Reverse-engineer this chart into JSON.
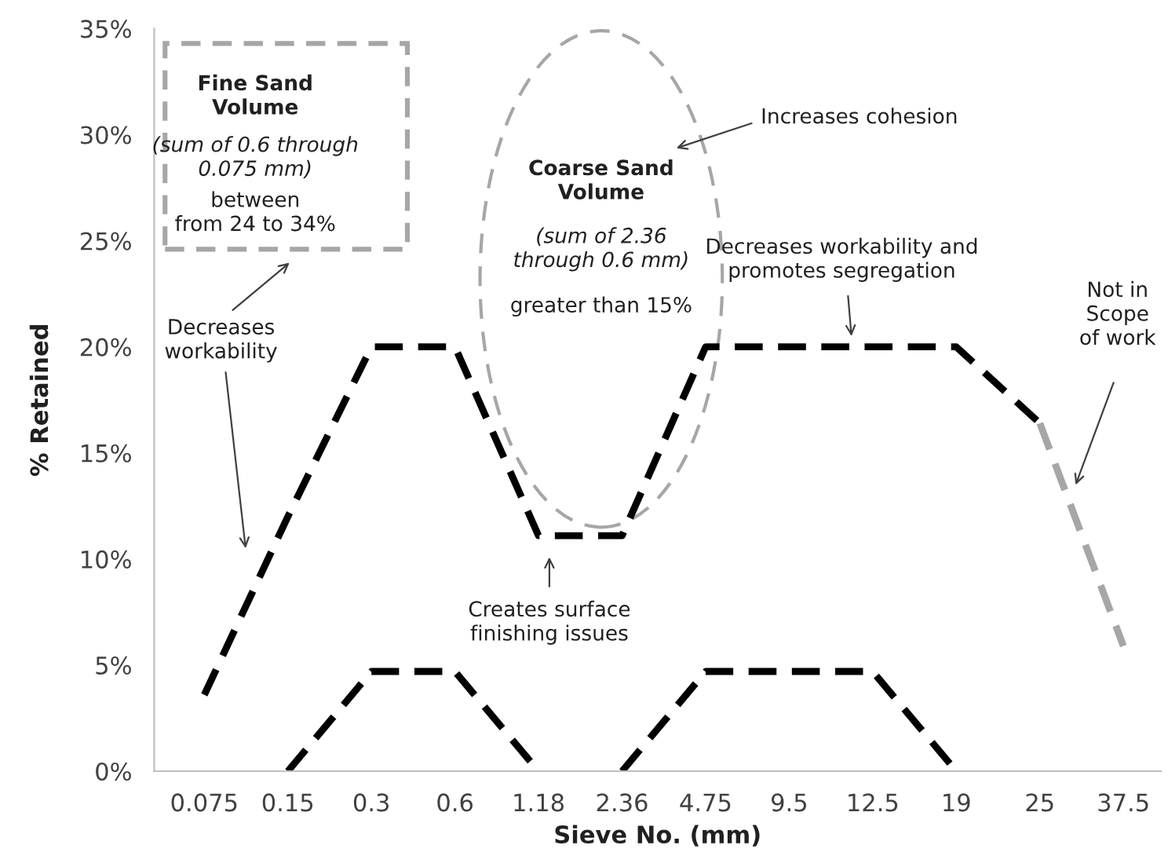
{
  "chart_data": {
    "type": "line",
    "xlabel": "Sieve No. (mm)",
    "ylabel": "% Retained",
    "categories": [
      "0.075",
      "0.15",
      "0.3",
      "0.6",
      "1.18",
      "2.36",
      "4.75",
      "9.5",
      "12.5",
      "19",
      "25",
      "37.5"
    ],
    "series": [
      {
        "color": "#000000",
        "values": [
          3.6,
          12,
          20,
          20,
          11.1,
          11.1,
          20,
          20,
          20,
          20,
          16.4,
          null
        ]
      },
      {
        "color": "#a6a6a6",
        "values": [
          null,
          null,
          null,
          null,
          null,
          null,
          null,
          null,
          null,
          null,
          16.4,
          5.9
        ]
      },
      {
        "color": "#000000",
        "values": [
          null,
          0,
          4.7,
          4.7,
          0,
          null,
          null,
          null,
          null,
          null,
          null,
          null
        ]
      },
      {
        "color": "#000000",
        "values": [
          null,
          null,
          null,
          null,
          null,
          0,
          4.7,
          4.7,
          4.7,
          0,
          null,
          null
        ]
      }
    ],
    "line_style": "dashed",
    "marker": "none",
    "grid": false,
    "legend": false,
    "ylim": [
      0,
      35
    ],
    "yticks": [
      {
        "value": 0,
        "label": "0%"
      },
      {
        "value": 5,
        "label": "5%"
      },
      {
        "value": 10,
        "label": "10%"
      },
      {
        "value": 15,
        "label": "15%"
      },
      {
        "value": 20,
        "label": "20%"
      },
      {
        "value": 25,
        "label": "25%"
      },
      {
        "value": 30,
        "label": "30%"
      },
      {
        "value": 35,
        "label": "35%"
      }
    ],
    "annotations": [
      "Fine Sand\nVolume",
      "(sum of 0.6 through\n0.075 mm)",
      "between\nfrom 24 to 34%",
      "Coarse Sand\nVolume",
      "(sum of 2.36\nthrough 0.6 mm)",
      "greater than 15%",
      "Increases cohesion",
      "Decreases\nworkability",
      "Decreases workability and\npromotes segregation",
      "Creates surface\nfinishing issues",
      "Not in\nScope\nof work"
    ]
  }
}
